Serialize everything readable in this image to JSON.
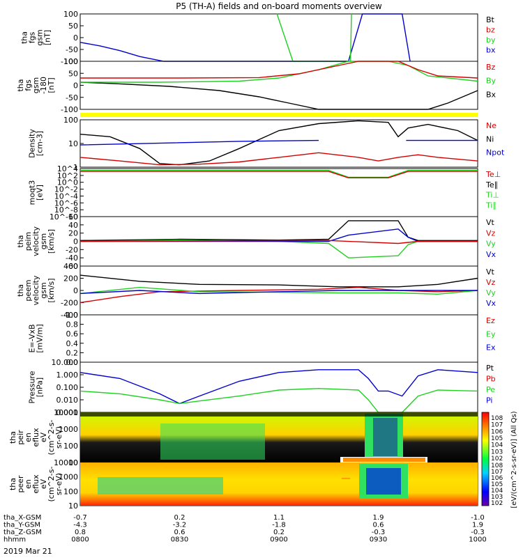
{
  "title": "P5 (TH-A) fields and on-board moments overview",
  "x_time_labels": [
    "0800",
    "0830",
    "0900",
    "0930",
    "1000"
  ],
  "x_time_hours": [
    8.0,
    8.5,
    9.0,
    9.5,
    10.0
  ],
  "xlim_hours": [
    8.0,
    10.0
  ],
  "footer_rows": [
    {
      "label": "tha_X-GSM",
      "values": [
        "-0.7",
        "0.2",
        "1.1",
        "1.9",
        "-1.0"
      ]
    },
    {
      "label": "tha_Y-GSM",
      "values": [
        "-4.3",
        "-3.2",
        "-1.8",
        "0.6",
        "1.9"
      ]
    },
    {
      "label": "tha_Z-GSM",
      "values": [
        "0.8",
        "0.6",
        "0.2",
        "-0.3",
        "-0.3"
      ]
    },
    {
      "label": "hhmm",
      "values": [
        "0800",
        "0830",
        "0900",
        "0930",
        "1000"
      ]
    }
  ],
  "date_label": "2019 Mar 21",
  "colorbar_label": "[eV/(cm^2-s-sr-eV)] (All Qs)",
  "colorbar_ticks": [
    "10^8",
    "10^7",
    "10^6",
    "10^5",
    "10^4",
    "10^3",
    "10^2"
  ],
  "colorbar_ticks_2": [
    "10^8",
    "10^7",
    "10^6",
    "10^5",
    "10^4",
    "10^3",
    "10^2"
  ],
  "colors": {
    "black": "#000000",
    "red": "#d40000",
    "green": "#1fd11f",
    "blue": "#0000d0",
    "yellow": "#ffff00"
  },
  "chart_data": [
    {
      "type": "line",
      "ylabel_lines": [
        "tha",
        "fgs",
        "gsm",
        "[nT]"
      ],
      "ylim": [
        -100,
        100
      ],
      "yticks": [
        "100",
        "50",
        "0",
        "-50",
        "-100"
      ],
      "legend": [
        {
          "name": "Bt",
          "color": "black"
        },
        {
          "name": "bz",
          "color": "red"
        },
        {
          "name": "by",
          "color": "green"
        },
        {
          "name": "bx",
          "color": "blue"
        }
      ],
      "series": [
        {
          "name": "bx",
          "color": "blue",
          "x": [
            8.0,
            8.1,
            8.2,
            8.3,
            8.42,
            9.35,
            9.42,
            9.62,
            9.66
          ],
          "y": [
            -20,
            -35,
            -55,
            -80,
            -100,
            -100,
            100,
            100,
            -100
          ]
        },
        {
          "name": "by",
          "color": "green",
          "x": [
            8.99,
            9.07,
            9.36,
            9.365
          ],
          "y": [
            100,
            -100,
            -100,
            100
          ]
        }
      ]
    },
    {
      "type": "line",
      "ylabel_lines": [
        "tha",
        "fgs",
        "gsm",
        "-180"
      ],
      "ylabel_units": "[nT]",
      "ylim": [
        -130,
        100
      ],
      "yticks": [
        "100",
        "50",
        "0",
        "-50",
        "-100"
      ],
      "legend": [
        {
          "name": "Bz",
          "color": "red"
        },
        {
          "name": "By",
          "color": "green"
        },
        {
          "name": "Bx",
          "color": "black"
        }
      ],
      "series": [
        {
          "name": "Bx",
          "color": "black",
          "x": [
            8.0,
            8.2,
            8.45,
            8.7,
            8.9,
            9.05,
            9.2,
            9.35,
            9.55,
            9.75,
            9.85,
            10.0
          ],
          "y": [
            0,
            -8,
            -20,
            -40,
            -70,
            -100,
            -130,
            -130,
            -130,
            -130,
            -100,
            -40
          ]
        },
        {
          "name": "By",
          "color": "green",
          "x": [
            8.0,
            8.4,
            8.8,
            9.0,
            9.2,
            9.35,
            9.45,
            9.55,
            9.65,
            9.75,
            10.0
          ],
          "y": [
            0,
            0,
            5,
            20,
            60,
            100,
            100,
            100,
            80,
            30,
            5
          ]
        },
        {
          "name": "Bz",
          "color": "red",
          "x": [
            8.0,
            8.5,
            8.9,
            9.1,
            9.3,
            9.4,
            9.5,
            9.6,
            9.7,
            9.8,
            10.0
          ],
          "y": [
            20,
            20,
            22,
            40,
            80,
            100,
            100,
            100,
            60,
            30,
            20
          ]
        }
      ]
    },
    {
      "type": "line",
      "ylabel_lines": [
        "Density",
        "[cm-3]"
      ],
      "log": true,
      "ylim": [
        1,
        200
      ],
      "yticks": [
        "100",
        "10",
        "1"
      ],
      "legend": [
        {
          "name": "Ne",
          "color": "red"
        },
        {
          "name": "Ni",
          "color": "black"
        },
        {
          "name": "Npot",
          "color": "blue"
        }
      ],
      "series": [
        {
          "name": "Ni",
          "color": "black",
          "x": [
            8.0,
            8.15,
            8.3,
            8.4,
            8.5,
            8.65,
            8.8,
            9.0,
            9.2,
            9.4,
            9.55,
            9.6,
            9.65,
            9.75,
            9.9,
            10.0
          ],
          "y": [
            40,
            30,
            8,
            1.5,
            1.3,
            2,
            8,
            60,
            130,
            180,
            150,
            30,
            80,
            120,
            60,
            20
          ]
        },
        {
          "name": "Npot",
          "color": "blue",
          "x": [
            8.0,
            8.8,
            9.2,
            9.21,
            9.63,
            9.64,
            10.0
          ],
          "y": [
            12,
            18,
            20,
            null,
            null,
            20,
            20
          ]
        },
        {
          "name": "Ne",
          "color": "red",
          "x": [
            8.0,
            8.2,
            8.4,
            8.6,
            8.8,
            9.0,
            9.2,
            9.4,
            9.5,
            9.6,
            9.7,
            9.8,
            10.0
          ],
          "y": [
            3,
            2,
            1.3,
            1.4,
            1.8,
            3,
            5,
            3,
            2,
            3,
            4,
            3,
            2
          ]
        }
      ]
    },
    {
      "type": "line",
      "ylabel_lines": [
        "moqt3",
        "[eV]"
      ],
      "log": true,
      "yticks": [
        "10^4",
        "10^2",
        "10^0",
        "10^-2",
        "10^-4",
        "10^-6",
        "10^-8",
        "10^-10"
      ],
      "legend": [
        {
          "name": "Te⊥",
          "color": "red"
        },
        {
          "name": "Te∥",
          "color": "black"
        },
        {
          "name": "Ti⊥",
          "color": "green"
        },
        {
          "name": "Ti∥",
          "color": "green"
        }
      ],
      "series": [
        {
          "name": "Ti",
          "color": "green",
          "x": [
            8.0,
            9.25,
            9.35,
            9.55,
            9.65,
            10.0
          ],
          "y": [
            3000,
            3000,
            30,
            30,
            3000,
            3000
          ]
        },
        {
          "name": "Te",
          "color": "red",
          "x": [
            8.0,
            9.25,
            9.35,
            9.55,
            9.65,
            10.0
          ],
          "y": [
            1500,
            1500,
            20,
            20,
            1500,
            1500
          ]
        }
      ]
    },
    {
      "type": "line",
      "ylabel_lines": [
        "tha",
        "peim",
        "velocity",
        "gsm",
        "[km/s]"
      ],
      "ylim": [
        -60,
        60
      ],
      "yticks": [
        "60",
        "40",
        "20",
        "0",
        "-20",
        "-40",
        "-60"
      ],
      "legend": [
        {
          "name": "Vt",
          "color": "black"
        },
        {
          "name": "Vz",
          "color": "red"
        },
        {
          "name": "Vy",
          "color": "green"
        },
        {
          "name": "Vx",
          "color": "blue"
        }
      ],
      "series": [
        {
          "name": "Vt",
          "color": "black",
          "x": [
            8.0,
            8.5,
            9.0,
            9.25,
            9.35,
            9.6,
            9.65,
            9.7,
            10.0
          ],
          "y": [
            2,
            5,
            3,
            5,
            50,
            50,
            10,
            2,
            2
          ]
        },
        {
          "name": "Vy",
          "color": "green",
          "x": [
            8.0,
            8.5,
            9.0,
            9.25,
            9.35,
            9.6,
            9.65,
            9.7,
            10.0
          ],
          "y": [
            0,
            3,
            0,
            -5,
            -40,
            -35,
            -8,
            0,
            0
          ]
        },
        {
          "name": "Vx",
          "color": "blue",
          "x": [
            8.0,
            9.25,
            9.35,
            9.6,
            9.65,
            9.7,
            10.0
          ],
          "y": [
            0,
            0,
            15,
            30,
            10,
            0,
            0
          ]
        },
        {
          "name": "Vz",
          "color": "red",
          "x": [
            8.0,
            9.25,
            9.6,
            9.7,
            10.0
          ],
          "y": [
            0,
            2,
            -5,
            0,
            0
          ]
        }
      ]
    },
    {
      "type": "line",
      "ylabel_lines": [
        "tha",
        "peem",
        "velocity",
        "gsm",
        "[km/s]"
      ],
      "ylim": [
        -400,
        400
      ],
      "yticks": [
        "400",
        "200",
        "0",
        "-200",
        "-400"
      ],
      "legend": [
        {
          "name": "Vt",
          "color": "black"
        },
        {
          "name": "Vz",
          "color": "red"
        },
        {
          "name": "Vy",
          "color": "green"
        },
        {
          "name": "Vx",
          "color": "blue"
        }
      ],
      "series": [
        {
          "name": "Vt",
          "color": "black",
          "x": [
            8.0,
            8.3,
            8.6,
            9.0,
            9.3,
            9.6,
            9.8,
            10.0
          ],
          "y": [
            250,
            150,
            100,
            90,
            60,
            60,
            100,
            200
          ]
        },
        {
          "name": "Vz",
          "color": "red",
          "x": [
            8.0,
            8.2,
            8.4,
            8.8,
            9.2,
            9.4,
            9.6,
            9.8,
            10.0
          ],
          "y": [
            -200,
            -100,
            -20,
            0,
            20,
            50,
            0,
            -20,
            0
          ]
        },
        {
          "name": "Vy",
          "color": "green",
          "x": [
            8.0,
            8.3,
            8.6,
            9.0,
            9.3,
            9.6,
            9.8,
            10.0
          ],
          "y": [
            -50,
            50,
            -20,
            -30,
            -40,
            -40,
            -60,
            0
          ]
        },
        {
          "name": "Vx",
          "color": "blue",
          "x": [
            8.0,
            8.3,
            8.6,
            9.0,
            9.3,
            9.6,
            9.8,
            10.0
          ],
          "y": [
            -50,
            0,
            -50,
            -20,
            0,
            0,
            0,
            0
          ]
        }
      ]
    },
    {
      "type": "line",
      "ylabel_lines": [
        "E=-VxB",
        "[mV/m]"
      ],
      "ylim": [
        0,
        1
      ],
      "yticks": [
        "1.0",
        "0.8",
        "0.6",
        "0.4",
        "0.2",
        "0.0"
      ],
      "legend": [
        {
          "name": "Ez",
          "color": "red"
        },
        {
          "name": "Ey",
          "color": "green"
        },
        {
          "name": "Ex",
          "color": "blue"
        }
      ],
      "series": []
    },
    {
      "type": "line",
      "ylabel_lines": [
        "Pressure",
        "[nPa]"
      ],
      "log": true,
      "ylim": [
        0.001,
        10
      ],
      "yticks": [
        "10.000",
        "1.000",
        "0.100",
        "0.010",
        "0.001"
      ],
      "legend": [
        {
          "name": "Pt",
          "color": "black"
        },
        {
          "name": "Pb",
          "color": "red"
        },
        {
          "name": "Pe",
          "color": "green"
        },
        {
          "name": "Pi",
          "color": "blue"
        }
      ],
      "series": [
        {
          "name": "Pi",
          "color": "blue",
          "x": [
            8.0,
            8.2,
            8.4,
            8.5,
            8.6,
            8.8,
            9.0,
            9.2,
            9.4,
            9.45,
            9.5,
            9.55,
            9.62,
            9.7,
            9.8,
            10.0
          ],
          "y": [
            1.5,
            0.5,
            0.03,
            0.005,
            0.02,
            0.3,
            1.5,
            2.5,
            2.5,
            0.5,
            0.05,
            0.05,
            0.02,
            0.8,
            2.5,
            1.5
          ]
        },
        {
          "name": "Pe",
          "color": "green",
          "x": [
            8.0,
            8.2,
            8.4,
            8.5,
            8.6,
            8.8,
            9.0,
            9.2,
            9.4,
            9.45,
            9.5,
            9.55,
            9.62,
            9.7,
            9.8,
            10.0
          ],
          "y": [
            0.05,
            0.03,
            0.01,
            0.005,
            0.008,
            0.02,
            0.06,
            0.08,
            0.06,
            0.01,
            0.001,
            0.001,
            0.001,
            0.02,
            0.06,
            0.05
          ]
        }
      ]
    },
    {
      "type": "heatmap",
      "ylabel_lines": [
        "tha",
        "peir",
        "en",
        "eflux",
        "eV",
        "(cm^2-s-",
        "sr-eV)"
      ],
      "log": true,
      "yticks": [
        "10000",
        "1000",
        "100",
        "10"
      ],
      "note": "ion energy flux spectrogram"
    },
    {
      "type": "heatmap",
      "ylabel_lines": [
        "tha",
        "peer",
        "en",
        "eflux",
        "eV",
        "(cm^2-s-",
        "sr-eV)"
      ],
      "log": true,
      "yticks": [
        "10000",
        "1000",
        "100",
        "10"
      ],
      "note": "electron energy flux spectrogram"
    }
  ]
}
